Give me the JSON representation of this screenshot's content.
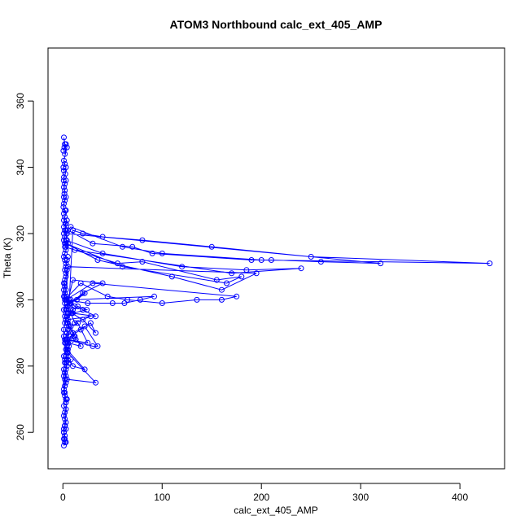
{
  "chart_data": {
    "type": "scatter",
    "title": "ATOM3 Northbound calc_ext_405_AMP",
    "xlabel": "calc_ext_405_AMP",
    "ylabel": "Theta (K)",
    "xlim": [
      -15,
      445
    ],
    "ylim": [
      249,
      376
    ],
    "xticks": [
      0,
      100,
      200,
      300,
      400
    ],
    "yticks": [
      260,
      280,
      300,
      320,
      340,
      360
    ],
    "xtick_labels": [
      "0",
      "100",
      "200",
      "300",
      "400"
    ],
    "ytick_labels": [
      "260",
      "280",
      "300",
      "320",
      "340",
      "360"
    ],
    "grid": false,
    "legend": "none",
    "style": "points connected by lines (open circles)",
    "color": "#0000ff",
    "series": [
      {
        "x": [
          1,
          2,
          1.5,
          0.5,
          3,
          2,
          4,
          1,
          2,
          0.5,
          1,
          3,
          2.5,
          1,
          0.8,
          2,
          3,
          1,
          2,
          1.5,
          1,
          2,
          3,
          1,
          0.5,
          2,
          1,
          3,
          2,
          1,
          2.5,
          1,
          3,
          4,
          2,
          1,
          3,
          2,
          1,
          2,
          3,
          4,
          5,
          3,
          2,
          1,
          2,
          3,
          5,
          4,
          3,
          2,
          3,
          4,
          3,
          2,
          1,
          2,
          3,
          2,
          2,
          3,
          4,
          5,
          4,
          3,
          2,
          3,
          4,
          6,
          5,
          4,
          3,
          2,
          3,
          4,
          5,
          4,
          3,
          2,
          3,
          4,
          3,
          2,
          3,
          2,
          3,
          2,
          10,
          20,
          40,
          80,
          150,
          250,
          430,
          200,
          100,
          60,
          8,
          5,
          30,
          70,
          90,
          190,
          210,
          260,
          320,
          4,
          3,
          40,
          120,
          185,
          240,
          170,
          12,
          2,
          55,
          80,
          155,
          180,
          165,
          60,
          3,
          35,
          110,
          160,
          195,
          5,
          2,
          18,
          45,
          65,
          100,
          135,
          160,
          175,
          30,
          3,
          25,
          50,
          62,
          78,
          92,
          8,
          4,
          20,
          40,
          10,
          3,
          20,
          33,
          28,
          18,
          8,
          3,
          25,
          15,
          8,
          4,
          30,
          35,
          22,
          10,
          5,
          18,
          12,
          4,
          8,
          12,
          28,
          5,
          10,
          15,
          24,
          10,
          8,
          22,
          14,
          7,
          4,
          6,
          12,
          20,
          33,
          9,
          3,
          5,
          11,
          5,
          13,
          6,
          4,
          22,
          10,
          3,
          8,
          6,
          5,
          33,
          4,
          2,
          1,
          3,
          2,
          1,
          3,
          2,
          1,
          2,
          3,
          2,
          1,
          2,
          1,
          3,
          1,
          2,
          1,
          2,
          1,
          3,
          2,
          1,
          2,
          4,
          3,
          2,
          1,
          1,
          2,
          1,
          2,
          1,
          3,
          2,
          1,
          1,
          2,
          4,
          1,
          2,
          1,
          1,
          2
        ],
        "y": [
          349,
          347,
          346,
          345,
          347,
          344,
          346,
          342,
          341,
          340,
          339,
          340,
          338,
          337,
          336,
          335,
          336,
          334,
          333,
          332,
          331,
          330,
          331,
          329,
          328,
          327,
          326,
          327,
          325,
          324,
          323,
          322,
          323,
          324,
          321,
          320,
          321,
          319,
          318,
          317,
          316,
          318,
          317,
          315,
          314,
          313,
          312,
          311,
          313,
          312,
          310,
          309,
          308,
          309,
          307,
          306,
          305,
          304,
          303,
          302,
          301,
          300,
          299,
          298,
          297,
          296,
          295,
          294,
          293,
          292,
          291,
          290,
          289,
          288,
          287,
          286,
          285,
          284,
          283,
          282,
          281,
          280,
          279,
          278,
          277,
          276,
          275,
          274,
          321,
          320,
          319,
          318,
          316,
          313,
          311,
          312,
          314,
          316,
          322,
          321,
          317,
          316,
          314,
          312,
          312,
          311.5,
          311,
          320,
          318,
          314,
          310,
          309,
          309.5,
          308,
          315,
          316,
          311,
          311.5,
          306,
          307,
          305,
          310,
          317,
          312,
          307,
          303,
          308,
          310,
          300,
          305,
          301,
          300,
          299,
          300,
          300,
          301,
          305,
          300,
          299,
          299,
          299,
          300,
          301,
          300,
          298,
          302,
          305,
          306,
          297,
          294,
          290,
          293,
          291,
          289,
          288,
          287,
          293,
          292,
          288,
          286,
          286,
          292,
          290,
          287,
          286,
          289,
          295,
          296,
          293,
          295,
          294,
          297,
          298,
          297,
          296,
          299,
          302,
          300,
          299,
          301,
          300,
          298,
          297,
          295,
          296,
          294,
          293,
          289,
          287,
          288,
          286,
          285,
          279,
          280,
          283,
          282,
          281,
          284,
          275,
          276,
          274,
          272,
          270,
          271,
          268,
          267,
          266,
          265,
          264,
          263,
          262,
          261,
          262,
          260,
          261,
          260,
          259,
          258,
          257,
          256,
          257,
          258,
          260,
          262,
          270,
          269,
          272,
          273,
          277,
          278,
          279,
          281,
          283,
          285,
          287,
          289,
          291,
          293,
          295,
          297,
          299,
          301,
          303,
          305
        ]
      }
    ]
  }
}
